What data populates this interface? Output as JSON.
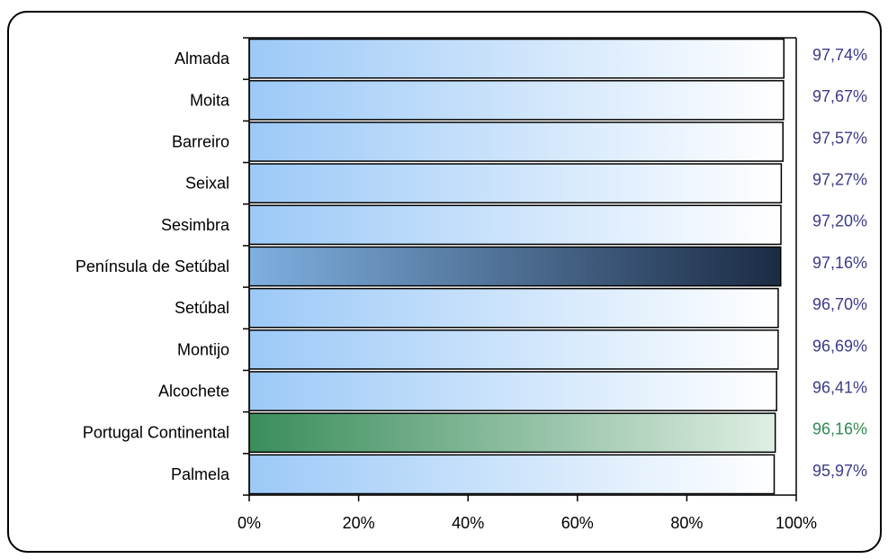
{
  "chart_data": {
    "type": "bar",
    "orientation": "horizontal",
    "categories": [
      "Almada",
      "Moita",
      "Barreiro",
      "Seixal",
      "Sesimbra",
      "Península de Setúbal",
      "Setúbal",
      "Montijo",
      "Alcochete",
      "Portugal Continental",
      "Palmela"
    ],
    "values": [
      97.74,
      97.67,
      97.57,
      97.27,
      97.2,
      97.16,
      96.7,
      96.69,
      96.41,
      96.16,
      95.97
    ],
    "value_labels": [
      "97,74%",
      "97,67%",
      "97,57%",
      "97,27%",
      "97,20%",
      "97,16%",
      "96,70%",
      "96,69%",
      "96,41%",
      "96,16%",
      "95,97%"
    ],
    "bar_styles": [
      "blue",
      "blue",
      "blue",
      "blue",
      "blue",
      "dark",
      "blue",
      "blue",
      "blue",
      "green",
      "blue"
    ],
    "xlim": [
      0,
      100
    ],
    "xticks": [
      "0%",
      "20%",
      "40%",
      "60%",
      "80%",
      "100%"
    ],
    "grid": false,
    "colors": {
      "blue_bar_start": "#9cc9f7",
      "blue_bar_end": "#ffffff",
      "dark_bar_start": "#7fb0e0",
      "dark_bar_end": "#1b2b44",
      "green_bar_start": "#3a8d5c",
      "green_bar_end": "#dfeee3",
      "value_text": "#3b3b8c",
      "value_text_green": "#2e8b4f"
    }
  }
}
